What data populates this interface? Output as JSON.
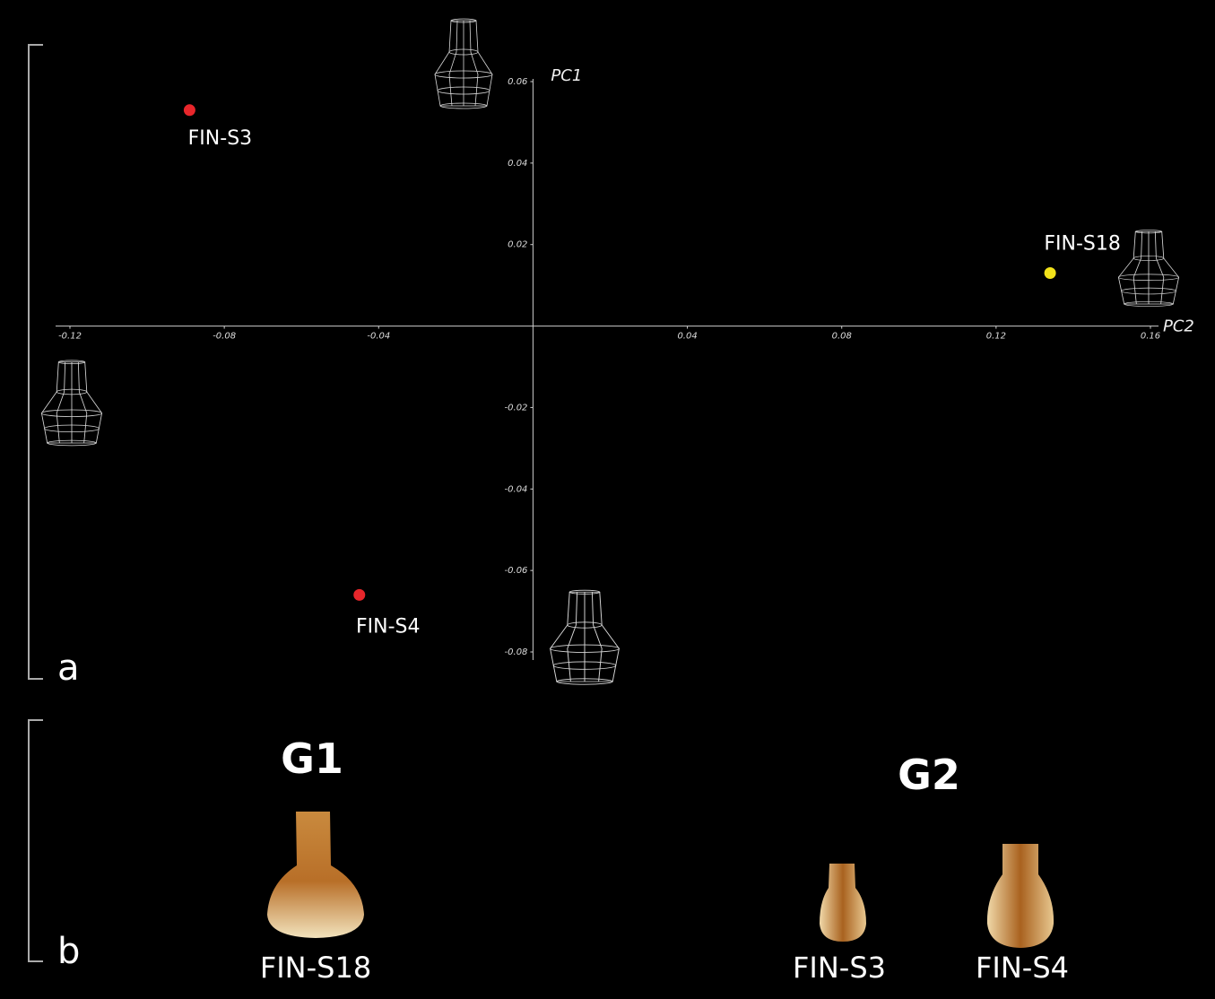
{
  "chart_data": {
    "type": "scatter",
    "x_label": "PC2",
    "y_label": "PC1",
    "xlim": [
      -0.12,
      0.16
    ],
    "xticks": [
      -0.12,
      -0.08,
      -0.04,
      0.04,
      0.08,
      0.12,
      0.16
    ],
    "ylim": [
      -0.08,
      0.06
    ],
    "yticks": [
      0.06,
      0.04,
      0.02,
      -0.02,
      -0.04,
      -0.06,
      -0.08
    ],
    "series": [
      {
        "name": "FIN-S3",
        "color": "#e8262b",
        "x": [
          -0.089
        ],
        "values": [
          0.053
        ]
      },
      {
        "name": "FIN-S4",
        "color": "#e8262b",
        "x": [
          -0.045
        ],
        "values": [
          -0.066
        ]
      },
      {
        "name": "FIN-S18",
        "color": "#f2e21a",
        "x": [
          0.134
        ],
        "values": [
          0.013
        ]
      }
    ]
  },
  "panel_a": {
    "label": "a"
  },
  "panel_b": {
    "label": "b",
    "groups": [
      {
        "name": "G1",
        "items": [
          "FIN-S18"
        ]
      },
      {
        "name": "G2",
        "items": [
          "FIN-S3",
          "FIN-S4"
        ]
      }
    ]
  }
}
